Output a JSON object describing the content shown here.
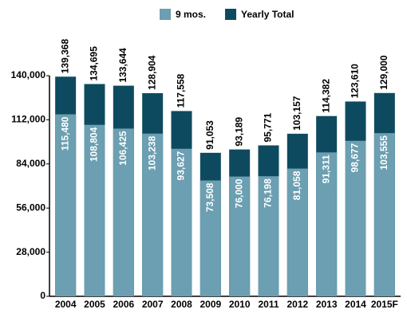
{
  "chart_data": {
    "type": "bar",
    "categories": [
      "2004",
      "2005",
      "2006",
      "2007",
      "2008",
      "2009",
      "2010",
      "2011",
      "2012",
      "2013",
      "2014",
      "2015F"
    ],
    "series": [
      {
        "name": "9 mos.",
        "color": "#6b9fb1",
        "values": [
          115480,
          108804,
          106425,
          103238,
          93627,
          73508,
          76000,
          76198,
          81058,
          91311,
          98677,
          103555
        ],
        "value_labels": [
          "115,480",
          "108,804",
          "106,425",
          "103,238",
          "93,627",
          "73,508",
          "76,000",
          "76,198",
          "81,058",
          "91,311",
          "98,677",
          "103,555"
        ]
      },
      {
        "name": "Yearly Total",
        "color": "#0e4a5f",
        "values": [
          139368,
          134695,
          133644,
          128904,
          117558,
          91053,
          93189,
          95771,
          103157,
          114382,
          123610,
          129000
        ],
        "value_labels": [
          "139,368",
          "134,695",
          "133,644",
          "128,904",
          "117,558",
          "91,053",
          "93,189",
          "95,771",
          "103,157",
          "114,382",
          "123,610",
          "129,000"
        ]
      }
    ],
    "ylim": [
      0,
      140000
    ],
    "yticks": [
      0,
      {
        "value": 28000,
        "label": "28,000"
      },
      {
        "value": 56000,
        "label": "56,000"
      },
      {
        "value": 84000,
        "label": "84,000"
      },
      {
        "value": 112000,
        "label": "112,000"
      },
      {
        "value": 140000,
        "label": "140,000"
      }
    ],
    "grid": false,
    "legend": "top"
  }
}
